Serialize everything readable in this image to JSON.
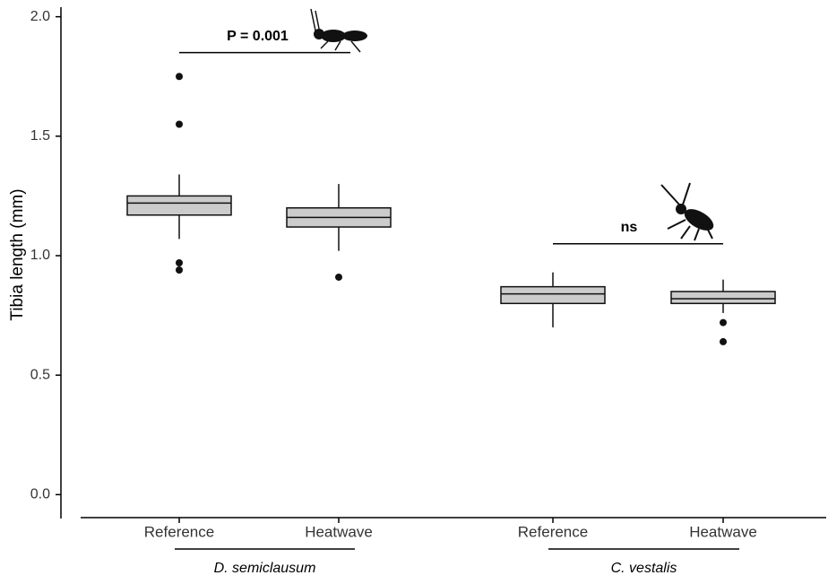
{
  "chart_data": {
    "type": "box",
    "y_label": "Tibia length (mm)",
    "categories": [
      "Reference",
      "Heatwave",
      "Reference",
      "Heatwave"
    ],
    "groups": [
      "D. semiclausum",
      "C. vestalis"
    ],
    "color": "#cccccc",
    "boxes": [
      {
        "whisker_low": 1.07,
        "q1": 1.17,
        "median": 1.22,
        "q3": 1.25,
        "whisker_high": 1.34,
        "outliers": [
          1.75,
          1.55,
          0.97,
          0.94
        ]
      },
      {
        "whisker_low": 1.02,
        "q1": 1.12,
        "median": 1.16,
        "q3": 1.2,
        "whisker_high": 1.3,
        "outliers": [
          0.91
        ]
      },
      {
        "whisker_low": 0.7,
        "q1": 0.8,
        "median": 0.84,
        "q3": 0.87,
        "whisker_high": 0.93,
        "outliers": []
      },
      {
        "whisker_low": 0.76,
        "q1": 0.8,
        "median": 0.82,
        "q3": 0.85,
        "whisker_high": 0.9,
        "outliers": [
          0.72,
          0.64
        ]
      }
    ],
    "annotations": [
      {
        "text": "P = 0.001",
        "y": 1.85
      },
      {
        "text": "ns",
        "y": 1.05
      }
    ],
    "ylim": [
      -0.1,
      2.04
    ],
    "yticks": [
      {
        "value": 0,
        "label": "0.0"
      },
      0.5,
      {
        "value": 1,
        "label": "1.0"
      },
      1.5,
      {
        "value": 2,
        "label": "2.0"
      }
    ]
  }
}
